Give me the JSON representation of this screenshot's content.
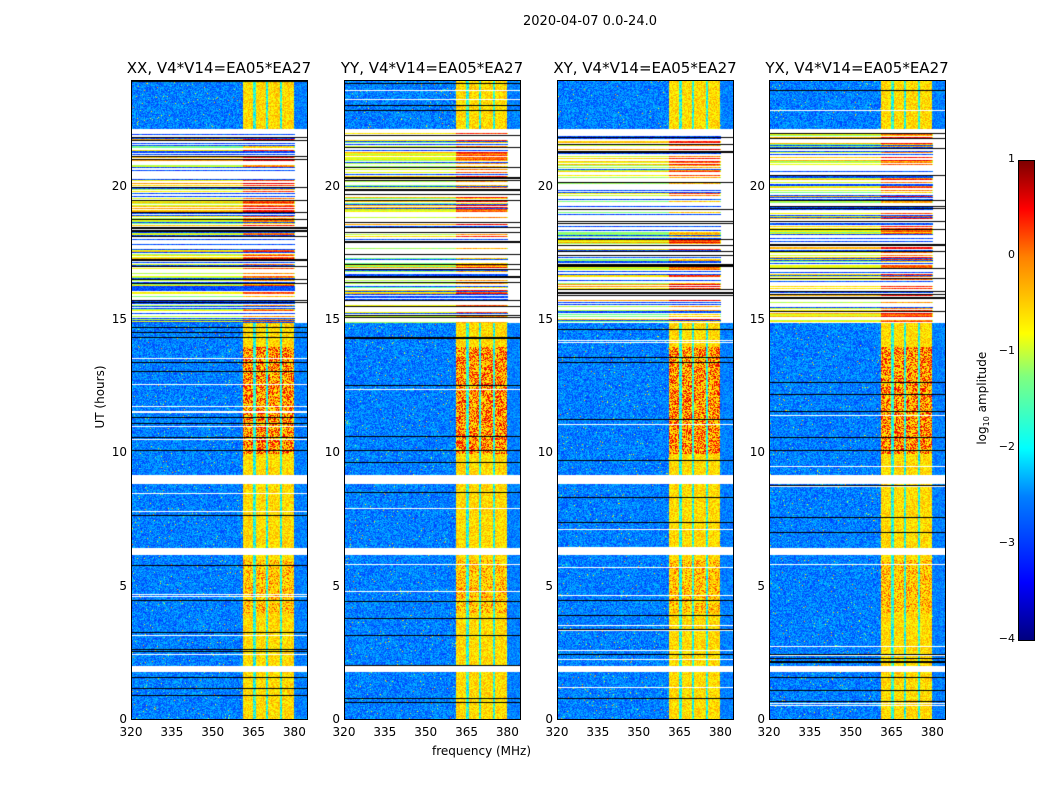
{
  "chart_data": {
    "type": "heatmap",
    "suptitle": "2020-04-07 0.0-24.0",
    "panels": [
      {
        "title": "XX, V4*V14=EA05*EA27"
      },
      {
        "title": "YY, V4*V14=EA05*EA27"
      },
      {
        "title": "XY, V4*V14=EA05*EA27"
      },
      {
        "title": "YX, V4*V14=EA05*EA27"
      }
    ],
    "xlabel": "frequency (MHz)",
    "ylabel": "UT (hours)",
    "xlim": [
      320,
      385
    ],
    "ylim": [
      0,
      24
    ],
    "xticks": [
      "320",
      "335",
      "350",
      "365",
      "380"
    ],
    "xtick_values": [
      320,
      335,
      350,
      365,
      380
    ],
    "yticks": [
      "0",
      "5",
      "10",
      "15",
      "20"
    ],
    "ytick_values": [
      0,
      5,
      10,
      15,
      20
    ],
    "colorbar": {
      "label": "log10 amplitude",
      "label_main": "log",
      "label_sub": "10",
      "label_rest": " amplitude",
      "range": [
        -4,
        1
      ],
      "ticks": [
        "1",
        "0",
        "−1",
        "−2",
        "−3",
        "−4"
      ],
      "tick_values": [
        1,
        0,
        -1,
        -2,
        -3,
        -4
      ],
      "colormap": "jet"
    },
    "bright_band_mhz": [
      361,
      380
    ],
    "flagged_hours": [
      [
        1.8,
        2.0
      ],
      [
        6.2,
        6.45
      ],
      [
        8.85,
        9.2
      ],
      [
        22.1,
        22.2
      ]
    ]
  }
}
